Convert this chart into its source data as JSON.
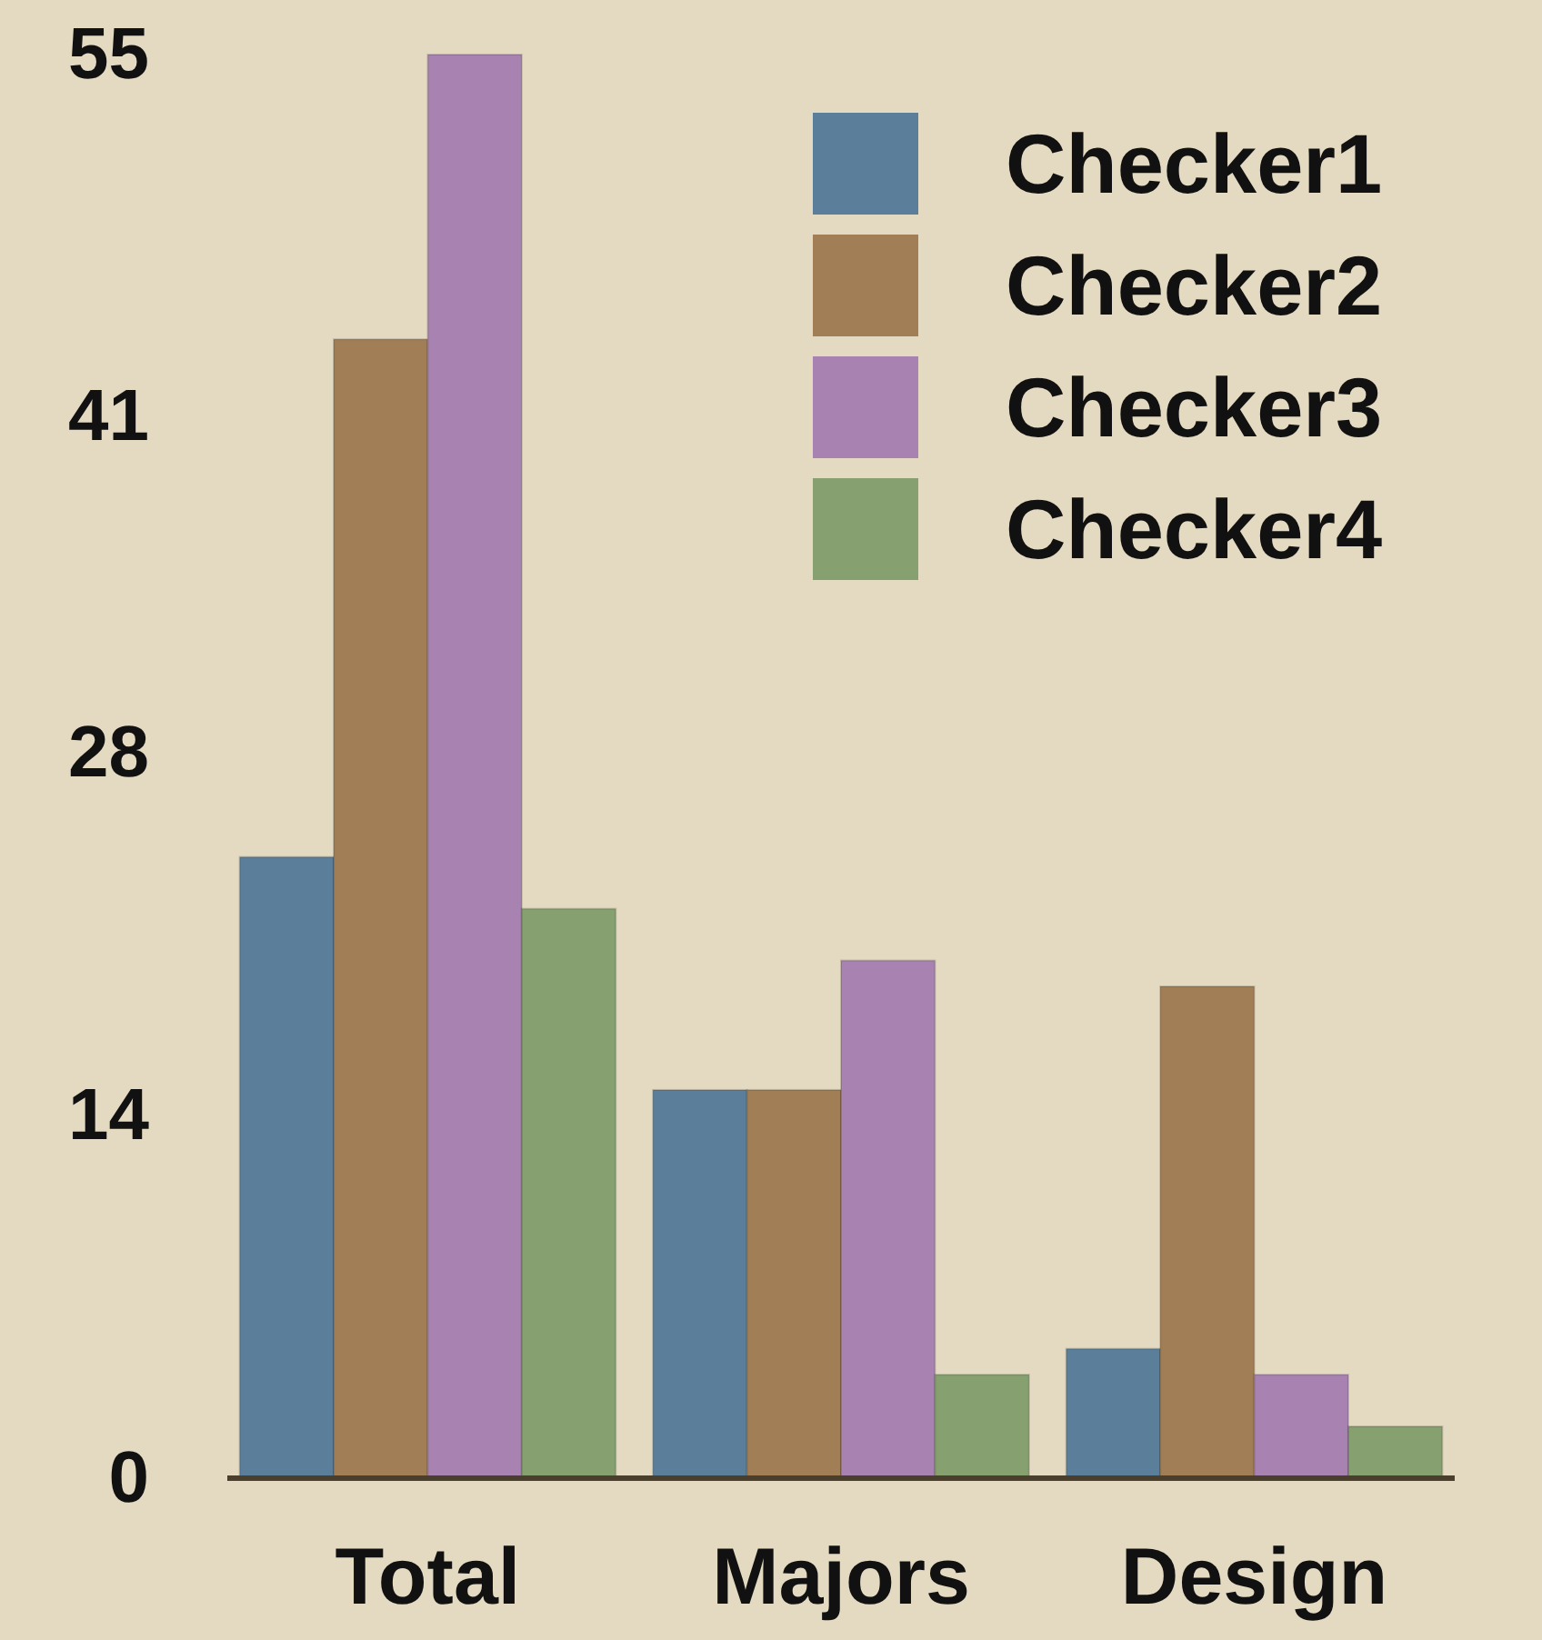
{
  "chart_data": {
    "type": "bar",
    "categories": [
      "Total",
      "Majors",
      "Design"
    ],
    "series": [
      {
        "name": "Checker1",
        "color": "#5b7f9b",
        "values": [
          24,
          15,
          5
        ]
      },
      {
        "name": "Checker2",
        "color": "#a27e56",
        "values": [
          44,
          15,
          19
        ]
      },
      {
        "name": "Checker3",
        "color": "#a883b1",
        "values": [
          55,
          20,
          4
        ]
      },
      {
        "name": "Checker4",
        "color": "#86a06f",
        "values": [
          22,
          4,
          2
        ]
      }
    ],
    "ylim": [
      0,
      55
    ],
    "yticks": [
      0,
      14,
      28,
      41,
      55
    ],
    "grid": false,
    "legend": "top right"
  }
}
